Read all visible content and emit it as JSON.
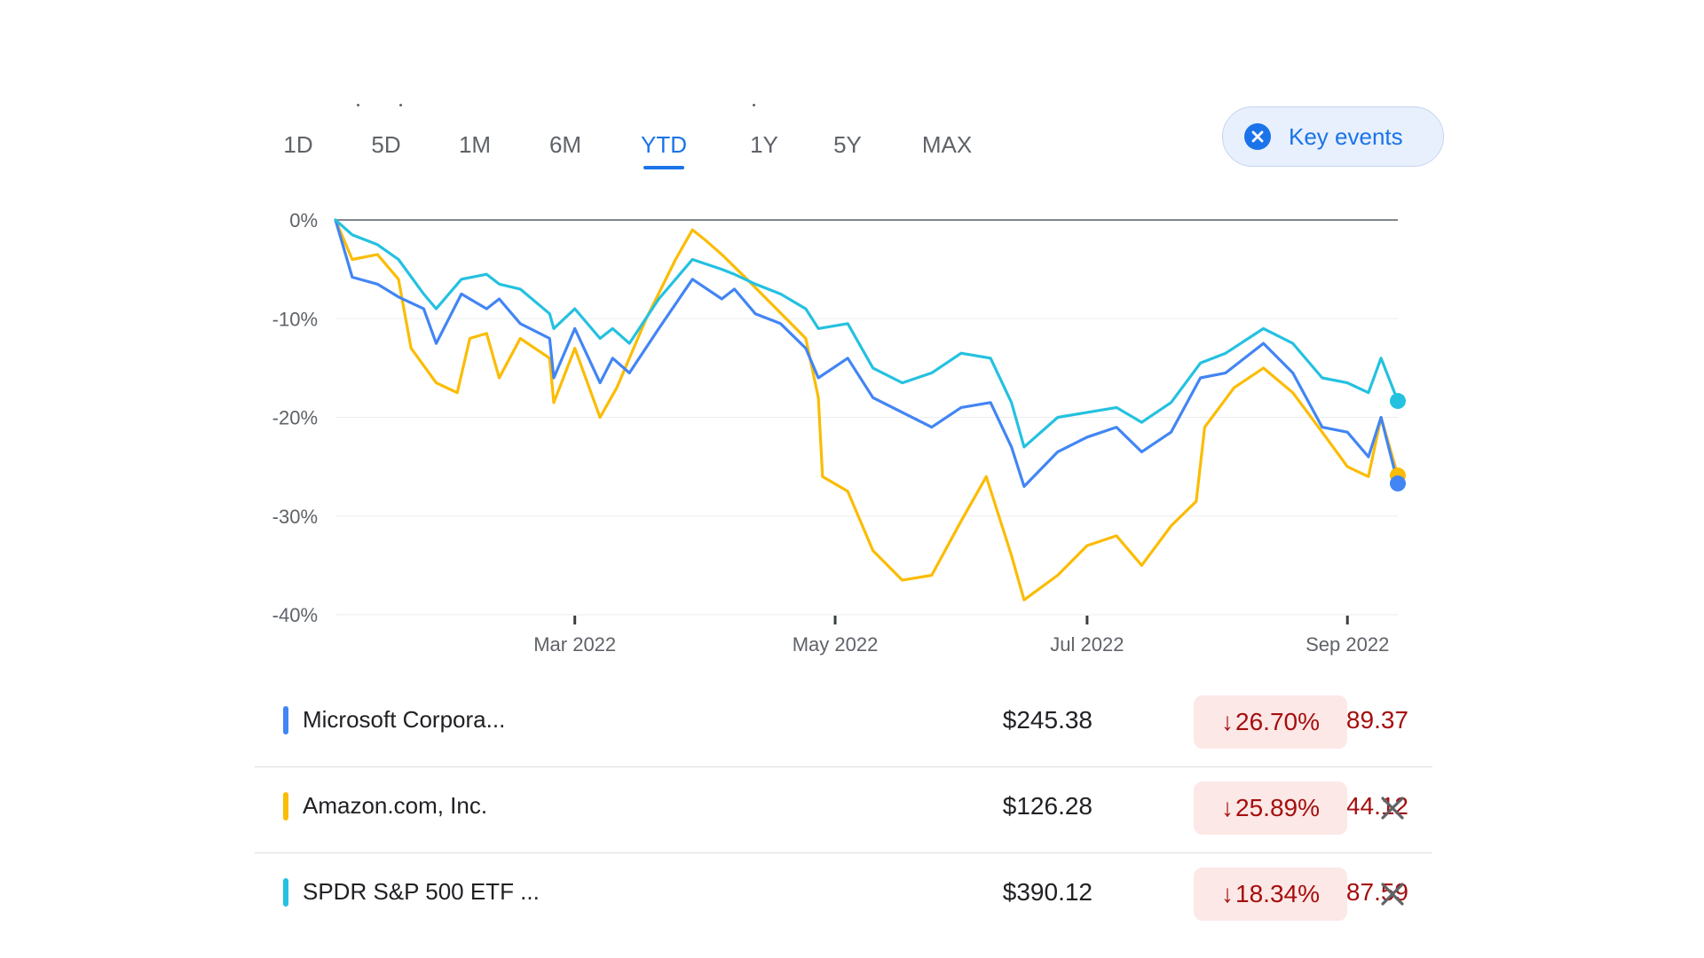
{
  "range_tabs": [
    {
      "label": "1D",
      "active": false
    },
    {
      "label": "5D",
      "active": false
    },
    {
      "label": "1M",
      "active": false
    },
    {
      "label": "6M",
      "active": false
    },
    {
      "label": "YTD",
      "active": true
    },
    {
      "label": "1Y",
      "active": false
    },
    {
      "label": "5Y",
      "active": false
    },
    {
      "label": "MAX",
      "active": false
    }
  ],
  "key_events": {
    "label": "Key events",
    "icon": "close-circle-icon"
  },
  "colors": {
    "accent": "#1a73e8",
    "microsoft": "#4285f4",
    "amazon": "#fbbc04",
    "spy": "#24c1e0",
    "negative": "#a50e0e",
    "negative_bg": "#fce8e6"
  },
  "chart_data": {
    "type": "line",
    "x_ticks": [
      "Mar 2022",
      "May 2022",
      "Jul 2022",
      "Sep 2022"
    ],
    "y_ticks": [
      "0%",
      "-10%",
      "-20%",
      "-30%",
      "-40%"
    ],
    "ylim": [
      -40,
      0
    ],
    "series": [
      {
        "name": "Microsoft Corporation",
        "color": "#4285f4",
        "points": [
          [
            "2022-01-03",
            0
          ],
          [
            "2022-01-07",
            -5.8
          ],
          [
            "2022-01-13",
            -6.5
          ],
          [
            "2022-01-18",
            -7.8
          ],
          [
            "2022-01-24",
            -9.0
          ],
          [
            "2022-01-27",
            -12.5
          ],
          [
            "2022-02-02",
            -7.5
          ],
          [
            "2022-02-08",
            -9.0
          ],
          [
            "2022-02-11",
            -8.0
          ],
          [
            "2022-02-16",
            -10.5
          ],
          [
            "2022-02-23",
            -12.0
          ],
          [
            "2022-02-24",
            -16.0
          ],
          [
            "2022-03-01",
            -11.0
          ],
          [
            "2022-03-07",
            -16.5
          ],
          [
            "2022-03-10",
            -14.0
          ],
          [
            "2022-03-14",
            -15.5
          ],
          [
            "2022-03-21",
            -11.0
          ],
          [
            "2022-03-29",
            -6.0
          ],
          [
            "2022-04-05",
            -8.0
          ],
          [
            "2022-04-08",
            -7.0
          ],
          [
            "2022-04-13",
            -9.5
          ],
          [
            "2022-04-19",
            -10.5
          ],
          [
            "2022-04-25",
            -13.0
          ],
          [
            "2022-04-28",
            -16.0
          ],
          [
            "2022-05-05",
            -14.0
          ],
          [
            "2022-05-11",
            -18.0
          ],
          [
            "2022-05-18",
            -19.5
          ],
          [
            "2022-05-25",
            -21.0
          ],
          [
            "2022-06-01",
            -19.0
          ],
          [
            "2022-06-08",
            -18.5
          ],
          [
            "2022-06-13",
            -23.0
          ],
          [
            "2022-06-16",
            -27.0
          ],
          [
            "2022-06-24",
            -23.5
          ],
          [
            "2022-07-01",
            -22.0
          ],
          [
            "2022-07-08",
            -21.0
          ],
          [
            "2022-07-14",
            -23.5
          ],
          [
            "2022-07-21",
            -21.5
          ],
          [
            "2022-07-28",
            -16.0
          ],
          [
            "2022-08-03",
            -15.5
          ],
          [
            "2022-08-12",
            -12.5
          ],
          [
            "2022-08-19",
            -15.5
          ],
          [
            "2022-08-26",
            -21.0
          ],
          [
            "2022-09-01",
            -21.5
          ],
          [
            "2022-09-06",
            -24.0
          ],
          [
            "2022-09-09",
            -20.0
          ],
          [
            "2022-09-13",
            -26.7
          ]
        ]
      },
      {
        "name": "Amazon.com, Inc.",
        "color": "#fbbc04",
        "points": [
          [
            "2022-01-03",
            0
          ],
          [
            "2022-01-07",
            -4.0
          ],
          [
            "2022-01-13",
            -3.5
          ],
          [
            "2022-01-18",
            -6.0
          ],
          [
            "2022-01-21",
            -13.0
          ],
          [
            "2022-01-27",
            -16.5
          ],
          [
            "2022-02-01",
            -17.5
          ],
          [
            "2022-02-04",
            -12.0
          ],
          [
            "2022-02-08",
            -11.5
          ],
          [
            "2022-02-11",
            -16.0
          ],
          [
            "2022-02-16",
            -12.0
          ],
          [
            "2022-02-23",
            -14.0
          ],
          [
            "2022-02-24",
            -18.5
          ],
          [
            "2022-03-01",
            -13.0
          ],
          [
            "2022-03-07",
            -20.0
          ],
          [
            "2022-03-11",
            -17.0
          ],
          [
            "2022-03-18",
            -10.0
          ],
          [
            "2022-03-25",
            -4.0
          ],
          [
            "2022-03-29",
            -1.0
          ],
          [
            "2022-04-01",
            -2.0
          ],
          [
            "2022-04-05",
            -3.5
          ],
          [
            "2022-04-11",
            -6.0
          ],
          [
            "2022-04-18",
            -9.0
          ],
          [
            "2022-04-25",
            -12.0
          ],
          [
            "2022-04-28",
            -18.0
          ],
          [
            "2022-04-29",
            -26.0
          ],
          [
            "2022-05-05",
            -27.5
          ],
          [
            "2022-05-11",
            -33.5
          ],
          [
            "2022-05-18",
            -36.5
          ],
          [
            "2022-05-25",
            -36.0
          ],
          [
            "2022-06-01",
            -30.5
          ],
          [
            "2022-06-07",
            -26.0
          ],
          [
            "2022-06-13",
            -34.0
          ],
          [
            "2022-06-16",
            -38.5
          ],
          [
            "2022-06-24",
            -36.0
          ],
          [
            "2022-07-01",
            -33.0
          ],
          [
            "2022-07-08",
            -32.0
          ],
          [
            "2022-07-14",
            -35.0
          ],
          [
            "2022-07-21",
            -31.0
          ],
          [
            "2022-07-27",
            -28.5
          ],
          [
            "2022-07-29",
            -21.0
          ],
          [
            "2022-08-05",
            -17.0
          ],
          [
            "2022-08-12",
            -15.0
          ],
          [
            "2022-08-19",
            -17.5
          ],
          [
            "2022-08-26",
            -21.5
          ],
          [
            "2022-09-01",
            -25.0
          ],
          [
            "2022-09-06",
            -26.0
          ],
          [
            "2022-09-09",
            -20.0
          ],
          [
            "2022-09-13",
            -25.89
          ]
        ]
      },
      {
        "name": "SPDR S&P 500 ETF Trust",
        "color": "#24c1e0",
        "points": [
          [
            "2022-01-03",
            0
          ],
          [
            "2022-01-07",
            -1.5
          ],
          [
            "2022-01-13",
            -2.5
          ],
          [
            "2022-01-18",
            -4.0
          ],
          [
            "2022-01-24",
            -7.5
          ],
          [
            "2022-01-27",
            -9.0
          ],
          [
            "2022-02-02",
            -6.0
          ],
          [
            "2022-02-08",
            -5.5
          ],
          [
            "2022-02-11",
            -6.5
          ],
          [
            "2022-02-16",
            -7.0
          ],
          [
            "2022-02-23",
            -9.5
          ],
          [
            "2022-02-24",
            -11.0
          ],
          [
            "2022-03-01",
            -9.0
          ],
          [
            "2022-03-07",
            -12.0
          ],
          [
            "2022-03-10",
            -11.0
          ],
          [
            "2022-03-14",
            -12.5
          ],
          [
            "2022-03-21",
            -8.0
          ],
          [
            "2022-03-29",
            -4.0
          ],
          [
            "2022-04-05",
            -5.0
          ],
          [
            "2022-04-08",
            -5.5
          ],
          [
            "2022-04-13",
            -6.5
          ],
          [
            "2022-04-19",
            -7.5
          ],
          [
            "2022-04-25",
            -9.0
          ],
          [
            "2022-04-28",
            -11.0
          ],
          [
            "2022-05-05",
            -10.5
          ],
          [
            "2022-05-11",
            -15.0
          ],
          [
            "2022-05-18",
            -16.5
          ],
          [
            "2022-05-25",
            -15.5
          ],
          [
            "2022-06-01",
            -13.5
          ],
          [
            "2022-06-08",
            -14.0
          ],
          [
            "2022-06-13",
            -18.5
          ],
          [
            "2022-06-16",
            -23.0
          ],
          [
            "2022-06-24",
            -20.0
          ],
          [
            "2022-07-01",
            -19.5
          ],
          [
            "2022-07-08",
            -19.0
          ],
          [
            "2022-07-14",
            -20.5
          ],
          [
            "2022-07-21",
            -18.5
          ],
          [
            "2022-07-28",
            -14.5
          ],
          [
            "2022-08-03",
            -13.5
          ],
          [
            "2022-08-12",
            -11.0
          ],
          [
            "2022-08-19",
            -12.5
          ],
          [
            "2022-08-26",
            -16.0
          ],
          [
            "2022-09-01",
            -16.5
          ],
          [
            "2022-09-06",
            -17.5
          ],
          [
            "2022-09-09",
            -14.0
          ],
          [
            "2022-09-13",
            -18.34
          ]
        ]
      }
    ]
  },
  "stocks": [
    {
      "name": "Microsoft Corpora...",
      "price": "$245.38",
      "change": "-$89.37",
      "arrow": "↓",
      "pct": "26.70%",
      "color": "#4285f4",
      "removable": false
    },
    {
      "name": "Amazon.com, Inc.",
      "price": "$126.28",
      "change": "-$44.12",
      "arrow": "↓",
      "pct": "25.89%",
      "color": "#fbbc04",
      "removable": true
    },
    {
      "name": "SPDR S&P 500 ETF ...",
      "price": "$390.12",
      "change": "-$87.59",
      "arrow": "↓",
      "pct": "18.34%",
      "color": "#24c1e0",
      "removable": true
    }
  ]
}
